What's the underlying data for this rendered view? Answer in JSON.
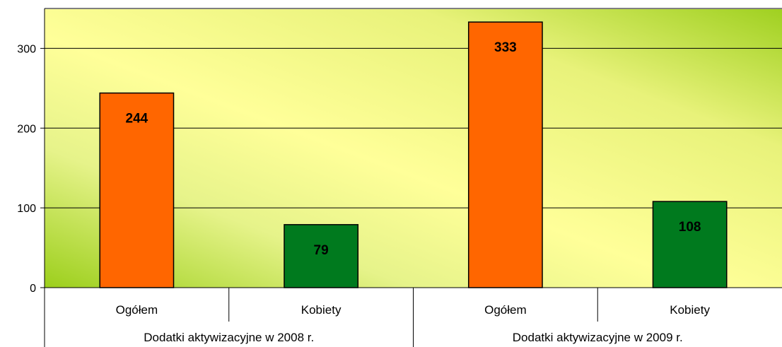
{
  "chart_data": {
    "type": "bar",
    "categories": [
      "Ogółem",
      "Kobiety",
      "Ogółem",
      "Kobiety"
    ],
    "groups": [
      "Dodatki aktywizacyjne w 2008 r.",
      "Dodatki aktywizacyjne w 2009 r."
    ],
    "values": [
      244,
      79,
      333,
      108
    ],
    "bar_colors": [
      "#ff6600",
      "#007a1e",
      "#ff6600",
      "#007a1e"
    ],
    "ylim": [
      0,
      350
    ],
    "yticks": [
      0,
      100,
      200,
      300
    ],
    "grid": true,
    "legend": "none",
    "title": "",
    "xlabel": "",
    "ylabel": ""
  }
}
